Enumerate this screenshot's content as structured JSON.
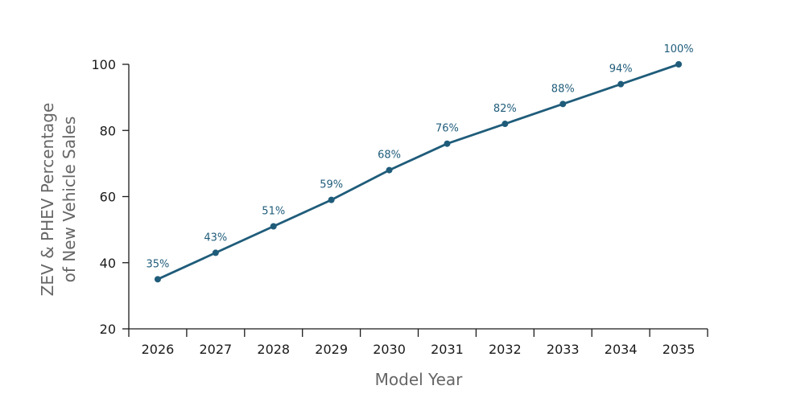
{
  "chart_data": {
    "type": "line",
    "title": "",
    "xlabel": "Model Year",
    "ylabel_line1": "ZEV & PHEV Percentage",
    "ylabel_line2": "of New Vehicle Sales",
    "categories": [
      "2026",
      "2027",
      "2028",
      "2029",
      "2030",
      "2031",
      "2032",
      "2033",
      "2034",
      "2035"
    ],
    "series": [
      {
        "values": [
          35,
          43,
          51,
          59,
          68,
          76,
          82,
          88,
          94,
          100
        ],
        "labels": [
          "35%",
          "43%",
          "51%",
          "59%",
          "68%",
          "76%",
          "82%",
          "88%",
          "94%",
          "100%"
        ],
        "color": "#1f5c7a"
      }
    ],
    "ylim": [
      20,
      100
    ],
    "yticks": [
      "20",
      "40",
      "60",
      "80",
      "100"
    ],
    "grid": false,
    "legend": "none"
  }
}
